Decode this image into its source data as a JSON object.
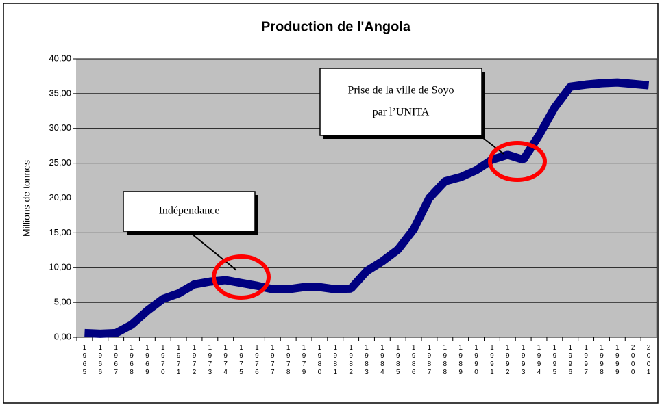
{
  "chart_data": {
    "type": "line",
    "title": "Production de l'Angola",
    "y_label": "Millions de tonnes",
    "categories": [
      "1965",
      "1966",
      "1967",
      "1968",
      "1969",
      "1970",
      "1971",
      "1972",
      "1973",
      "1974",
      "1975",
      "1976",
      "1977",
      "1978",
      "1979",
      "1980",
      "1981",
      "1982",
      "1983",
      "1984",
      "1985",
      "1986",
      "1987",
      "1988",
      "1989",
      "1990",
      "1991",
      "1992",
      "1993",
      "1994",
      "1995",
      "1996",
      "1997",
      "1998",
      "1999",
      "2000",
      "2001"
    ],
    "series": [
      {
        "name": "Production",
        "color": "#000080",
        "values": [
          0.6,
          0.5,
          0.6,
          1.8,
          3.8,
          5.5,
          6.3,
          7.6,
          8.0,
          8.2,
          7.8,
          7.4,
          6.9,
          6.9,
          7.2,
          7.2,
          6.9,
          7.0,
          9.5,
          10.9,
          12.6,
          15.5,
          20.0,
          22.4,
          23.0,
          24.0,
          25.5,
          26.2,
          25.5,
          29.0,
          33.0,
          36.0,
          36.3,
          36.5,
          36.6,
          36.4,
          36.2
        ]
      }
    ],
    "ylim": [
      0,
      40
    ],
    "yticks": [
      {
        "value": 0,
        "label": "0,00"
      },
      {
        "value": 5,
        "label": "5,00"
      },
      {
        "value": 10,
        "label": "10,00"
      },
      {
        "value": 15,
        "label": "15,00"
      },
      {
        "value": 20,
        "label": "20,00"
      },
      {
        "value": 25,
        "label": "25,00"
      },
      {
        "value": 30,
        "label": "30,00"
      },
      {
        "value": 35,
        "label": "35,00"
      },
      {
        "value": 40,
        "label": "40,00"
      }
    ],
    "grid": true,
    "annotations": [
      "Indépendance",
      "Prise de la ville de Soyo",
      "par l’UNITA"
    ]
  }
}
